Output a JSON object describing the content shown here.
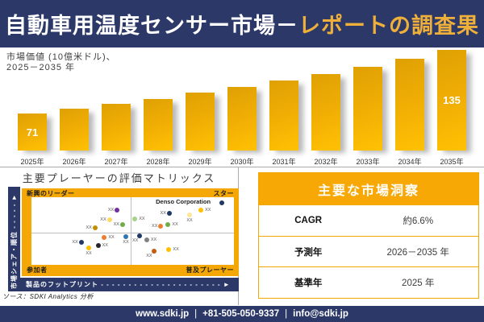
{
  "header": {
    "title_white": "自動車用温度センサー市場－",
    "title_gold": "レポートの調査果"
  },
  "bar_chart": {
    "subtitle_line1": "市場価値 (10億米ドル)、",
    "subtitle_line2": "2025－2035 年"
  },
  "chart_data": [
    {
      "type": "bar",
      "title": "市場価値 (10億米ドル)、2025－2035 年",
      "categories": [
        "2025年",
        "2026年",
        "2027年",
        "2028年",
        "2029年",
        "2030年",
        "2031年",
        "2032年",
        "2033年",
        "2034年",
        "2035年"
      ],
      "values": [
        71,
        76,
        81,
        86,
        92,
        98,
        104,
        111,
        118,
        126,
        135
      ],
      "labeled_values": {
        "2025年": 71,
        "2035年": 135
      },
      "ylim": [
        0,
        140
      ],
      "bar_color": "#E9A707",
      "grid": false,
      "legend": "none"
    },
    {
      "type": "scatter",
      "title": "主要プレーヤーの評価マトリックス",
      "xlabel": "製品のフットプリント",
      "ylabel": "市場シェア・順位",
      "quadrants": {
        "top_left": "新興のリーダー",
        "top_right": "スター",
        "bottom_left": "参加者",
        "bottom_right": "普及プレーヤー"
      },
      "annotation": {
        "text": "Denso Corporation",
        "x": 61.4,
        "y": 1.5
      },
      "point_label": "XX",
      "points": [
        {
          "x": 42.3,
          "y": 18.7,
          "c": "#7030A0",
          "s": "l"
        },
        {
          "x": 38.5,
          "y": 33.0,
          "c": "#FFD966",
          "s": "l"
        },
        {
          "x": 31.4,
          "y": 44.9,
          "c": "#BF8F00",
          "s": "l"
        },
        {
          "x": 45.0,
          "y": 40.5,
          "c": "#70AD47",
          "s": "l"
        },
        {
          "x": 51.1,
          "y": 32.1,
          "c": "#A9D18E",
          "s": "r"
        },
        {
          "x": 68.1,
          "y": 23.8,
          "c": "#1F3864",
          "s": "l"
        },
        {
          "x": 78.1,
          "y": 26.2,
          "c": "#FFE699",
          "s": "b"
        },
        {
          "x": 83.7,
          "y": 18.5,
          "c": "#FFC000",
          "s": "r"
        },
        {
          "x": 63.9,
          "y": 42.5,
          "c": "#ED7D31",
          "s": "l"
        },
        {
          "x": 67.5,
          "y": 40.8,
          "c": "#70AD47",
          "s": "r"
        },
        {
          "x": 94.0,
          "y": 8.7,
          "c": "#1F3864",
          "s": "none"
        },
        {
          "x": 53.5,
          "y": 56.8,
          "c": "#203864",
          "s": "bl"
        },
        {
          "x": 56.9,
          "y": 62.7,
          "c": "#808080",
          "s": "r"
        },
        {
          "x": 46.6,
          "y": 58.7,
          "c": "#2E75B6",
          "s": "b"
        },
        {
          "x": 36.0,
          "y": 59.5,
          "c": "#ED7D31",
          "s": "r"
        },
        {
          "x": 24.6,
          "y": 66.7,
          "c": "#1F3864",
          "s": "l"
        },
        {
          "x": 32.9,
          "y": 71.4,
          "c": "#262626",
          "s": "r"
        },
        {
          "x": 28.3,
          "y": 75.4,
          "c": "#FFC000",
          "s": "b"
        },
        {
          "x": 60.4,
          "y": 79.4,
          "c": "#C55A11",
          "s": "bl"
        },
        {
          "x": 67.9,
          "y": 77.4,
          "c": "#FFC000",
          "s": "r"
        }
      ]
    }
  ],
  "matrix": {
    "title": "主要プレーヤーの評価マトリックス",
    "y_axis": "市場シェア・順位",
    "y_axis_arrow": "- - - - - ►",
    "x_axis": "製品のフットプリント",
    "x_axis_arrow": "- - - - - - - - - - - - - - - - - - - - - - ►",
    "quadrant_top_left": "新興のリーダー",
    "quadrant_top_right": "スター",
    "quadrant_bottom_left": "参加者",
    "quadrant_bottom_right": "普及プレーヤー"
  },
  "source": "ソース：SDKI Analytics 分析",
  "insights": {
    "title": "主要な市場洞察",
    "rows": [
      {
        "label": "CAGR",
        "value": "約6.6%"
      },
      {
        "label": "予測年",
        "value": "2026－2035 年"
      },
      {
        "label": "基準年",
        "value": "2025 年"
      }
    ]
  },
  "footer": {
    "website": "www.sdki.jp",
    "phone": "+81-505-050-9337",
    "email": "info@sdki.jp"
  },
  "colors": {
    "navy": "#2C3968",
    "gold": "#F5A805",
    "title_gold_text": "#EFAF3B",
    "bar_gradient_start": "#DFA004",
    "bar_gradient_end": "#FFC103"
  }
}
